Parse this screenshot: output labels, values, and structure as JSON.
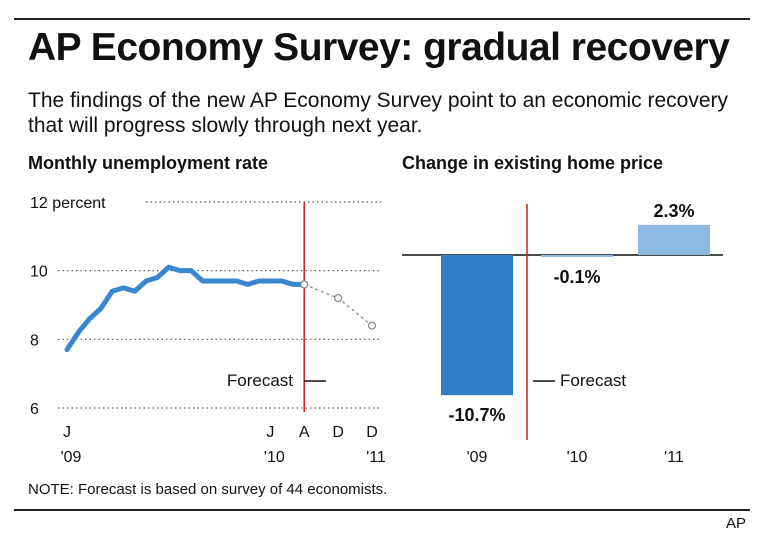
{
  "title": "AP Economy Survey: gradual recovery",
  "subtitle": "The findings of the new AP Economy Survey point to an economic recovery that will progress slowly through next year.",
  "note": "NOTE: Forecast is based on survey of 44 economists.",
  "credit": "AP",
  "colors": {
    "line": "#3a86cf",
    "bar_dark": "#2f7fc8",
    "bar_light": "#8db8e3",
    "forecast": "#cc2020",
    "forecast_line": "#999999"
  },
  "chart_data": [
    {
      "type": "line",
      "title": "Monthly unemployment rate",
      "y_ticks": [
        {
          "value": 12,
          "label": "12 percent"
        },
        {
          "value": 10,
          "label": "10"
        },
        {
          "value": 8,
          "label": "8"
        },
        {
          "value": 6,
          "label": "6"
        }
      ],
      "ylim": [
        6,
        12
      ],
      "x_ticks": [
        {
          "month": 0,
          "top": "J",
          "bottom": "'09"
        },
        {
          "month": 18,
          "top": "J",
          "bottom": "'10"
        },
        {
          "month": 21,
          "top": "A",
          "bottom": ""
        },
        {
          "month": 24,
          "top": "D",
          "bottom": ""
        },
        {
          "month": 27,
          "top": "D",
          "bottom": "'11"
        }
      ],
      "xlim": [
        0,
        27
      ],
      "series": [
        {
          "values": [
            {
              "x": 0,
              "y": 7.7
            },
            {
              "x": 1,
              "y": 8.2
            },
            {
              "x": 2,
              "y": 8.6
            },
            {
              "x": 3,
              "y": 8.9
            },
            {
              "x": 4,
              "y": 9.4
            },
            {
              "x": 5,
              "y": 9.5
            },
            {
              "x": 6,
              "y": 9.4
            },
            {
              "x": 7,
              "y": 9.7
            },
            {
              "x": 8,
              "y": 9.8
            },
            {
              "x": 9,
              "y": 10.1
            },
            {
              "x": 10,
              "y": 10.0
            },
            {
              "x": 11,
              "y": 10.0
            },
            {
              "x": 12,
              "y": 9.7
            },
            {
              "x": 13,
              "y": 9.7
            },
            {
              "x": 14,
              "y": 9.7
            },
            {
              "x": 15,
              "y": 9.7
            },
            {
              "x": 16,
              "y": 9.6
            },
            {
              "x": 17,
              "y": 9.7
            },
            {
              "x": 18,
              "y": 9.7
            },
            {
              "x": 19,
              "y": 9.7
            },
            {
              "x": 20,
              "y": 9.6
            },
            {
              "x": 21,
              "y": 9.6
            }
          ]
        },
        {
          "forecast": true,
          "values": [
            {
              "x": 21,
              "y": 9.6
            },
            {
              "x": 24,
              "y": 9.2
            },
            {
              "x": 27,
              "y": 8.4
            }
          ]
        }
      ],
      "forecast_label": "Forecast",
      "forecast_start": 21
    },
    {
      "type": "bar",
      "title": "Change in existing home price",
      "categories": [
        "'09",
        "'10",
        "'11"
      ],
      "values": [
        -10.7,
        -0.1,
        2.3
      ],
      "labels": [
        "-10.7%",
        "-0.1%",
        "2.3%"
      ],
      "forecast_label": "Forecast"
    }
  ]
}
